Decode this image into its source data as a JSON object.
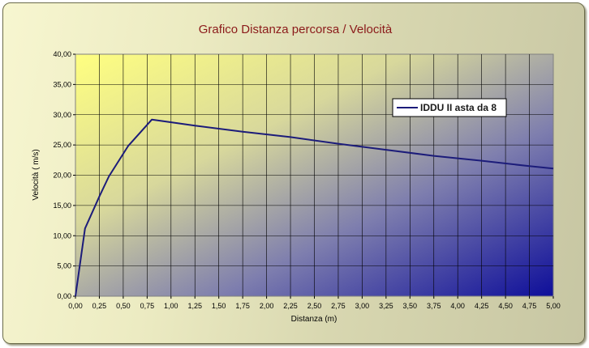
{
  "chart_data": {
    "type": "line",
    "title": "Grafico Distanza percorsa / Velocità",
    "xlabel": "Distanza (m)",
    "ylabel": "Velocità ( m/s)",
    "xlim": [
      0,
      5
    ],
    "ylim": [
      0,
      40
    ],
    "x_ticks": [
      "0,00",
      "0,25",
      "0,50",
      "0,75",
      "1,00",
      "1,25",
      "1,50",
      "1,75",
      "2,00",
      "2,25",
      "2,50",
      "2,75",
      "3,00",
      "3,25",
      "3,50",
      "3,75",
      "4,00",
      "4,25",
      "4,50",
      "4,75",
      "5,00"
    ],
    "y_ticks": [
      "0,00",
      "5,00",
      "10,00",
      "15,00",
      "20,00",
      "25,00",
      "30,00",
      "35,00",
      "40,00"
    ],
    "grid": true,
    "legend_position": "top-right",
    "series": [
      {
        "name": "IDDU II asta da 8",
        "color": "#1c1c7a",
        "x": [
          0,
          0.1,
          0.25,
          0.35,
          0.55,
          0.8,
          1.25,
          1.75,
          2.25,
          2.75,
          3.25,
          3.75,
          4.25,
          4.75,
          5.0
        ],
        "y": [
          0,
          11.2,
          16.5,
          19.8,
          24.8,
          29.2,
          28.2,
          27.2,
          26.3,
          25.2,
          24.2,
          23.2,
          22.4,
          21.5,
          21.1
        ]
      }
    ]
  }
}
